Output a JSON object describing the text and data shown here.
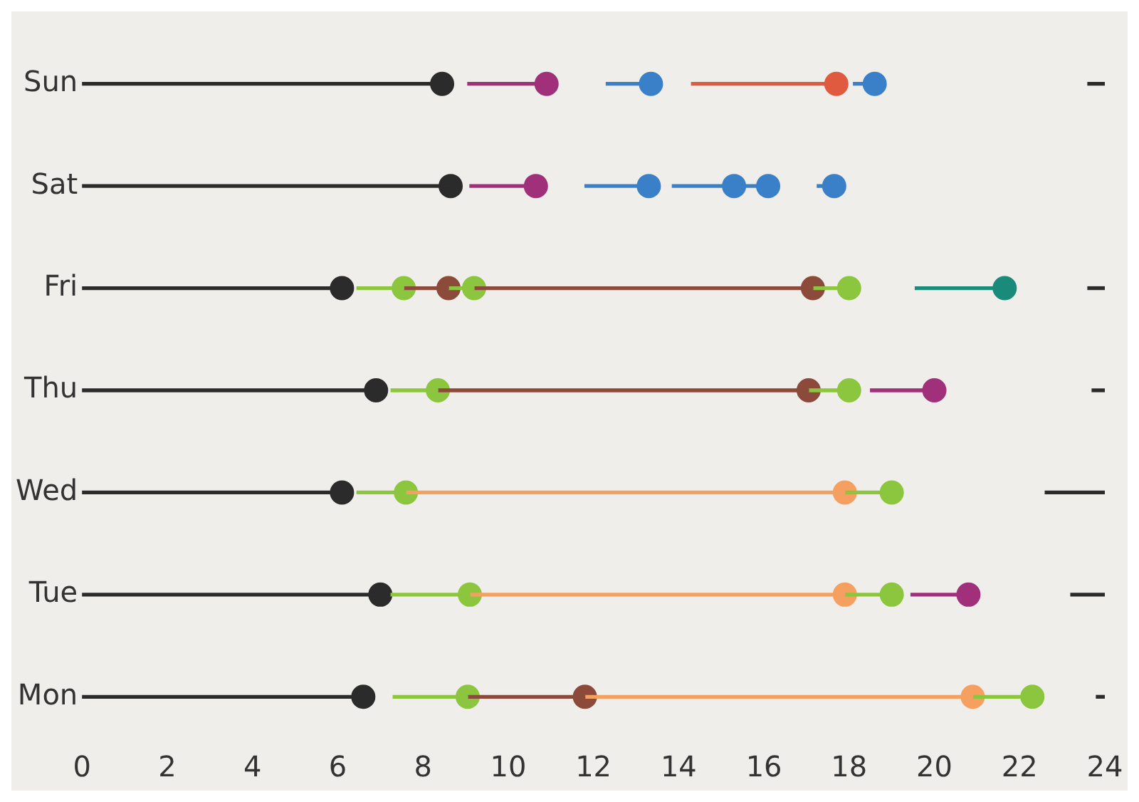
{
  "chart_data": {
    "type": "bar",
    "orientation": "horizontal",
    "categories": [
      "Sun",
      "Sat",
      "Fri",
      "Thu",
      "Wed",
      "Tue",
      "Mon"
    ],
    "xlim": [
      0,
      24
    ],
    "xticks": [
      0,
      2,
      4,
      6,
      8,
      10,
      12,
      14,
      16,
      18,
      20,
      22,
      24
    ],
    "grid": false,
    "legend": false,
    "series": [
      {
        "colors": [
          "#2b2b2b",
          null,
          "#2b2b2b",
          "#2b2b2b",
          "#2b2b2b",
          "#2b2b2b",
          "#2b2b2b"
        ],
        "base": [
          23.6,
          null,
          23.6,
          23.7,
          22.6,
          23.2,
          23.8
        ],
        "values": [
          0.4,
          null,
          0.4,
          0.3,
          1.4,
          0.8,
          0.2
        ]
      },
      {
        "colors": [
          "#2b2b2b",
          "#2b2b2b",
          "#2b2b2b",
          "#2b2b2b",
          "#2b2b2b",
          "#2b2b2b",
          "#2b2b2b"
        ],
        "base": [
          0,
          0,
          0,
          0,
          0,
          0,
          0
        ],
        "values": [
          8.45,
          8.65,
          6.1,
          6.9,
          6.1,
          7.0,
          6.6
        ]
      },
      {
        "colors": [
          "#a0307a",
          "#a0307a",
          "#8cc63f",
          "#8cc63f",
          "#8cc63f",
          "#8cc63f",
          "#8cc63f"
        ],
        "base": [
          9.05,
          9.1,
          6.45,
          7.25,
          6.45,
          7.25,
          7.3
        ],
        "values": [
          1.85,
          1.55,
          1.1,
          1.1,
          1.15,
          1.85,
          1.75
        ]
      },
      {
        "colors": [
          "#3a80c8",
          "#3a80c8",
          "#8b4a3a",
          "#8b4a3a",
          "#f5a060",
          "#f5a060",
          "#8b4a3a"
        ],
        "base": [
          12.3,
          11.8,
          7.55,
          8.35,
          7.6,
          9.1,
          9.05
        ],
        "values": [
          1.05,
          1.5,
          1.05,
          8.7,
          10.3,
          8.8,
          2.75
        ]
      },
      {
        "colors": [
          "#e05a40",
          "#3a80c8",
          "#8cc63f",
          "#8cc63f",
          "#8cc63f",
          "#8cc63f",
          "#f5a060"
        ],
        "base": [
          14.3,
          13.85,
          8.6,
          17.05,
          17.9,
          17.9,
          11.8
        ],
        "values": [
          3.4,
          1.45,
          0.6,
          0.95,
          1.1,
          1.1,
          9.1
        ]
      },
      {
        "colors": [
          "#3a80c8",
          "#3a80c8",
          "#8b4a3a",
          "#a0307a",
          null,
          "#a0307a",
          "#8cc63f"
        ],
        "base": [
          18.1,
          15.3,
          9.2,
          18.5,
          null,
          19.45,
          20.9
        ],
        "values": [
          0.5,
          0.8,
          7.95,
          1.5,
          null,
          1.35,
          1.4
        ]
      },
      {
        "colors": [
          null,
          "#3a80c8",
          "#8cc63f",
          null,
          null,
          null,
          null
        ],
        "base": [
          null,
          17.25,
          17.15,
          null,
          null,
          null,
          null
        ],
        "values": [
          null,
          0.4,
          0.85,
          null,
          null,
          null,
          null
        ]
      },
      {
        "colors": [
          null,
          null,
          "#1a8a7a",
          null,
          null,
          null,
          null
        ],
        "base": [
          null,
          null,
          19.55,
          null,
          null,
          null,
          null
        ],
        "values": [
          null,
          null,
          2.1,
          null,
          null,
          null,
          null
        ]
      },
      {
        "type": "scatter",
        "marker": "circle",
        "color": "#2b2b2b",
        "x": [
          "Sun",
          "Sat",
          "Fri",
          "Thu",
          "Wed",
          "Tue",
          "Mon"
        ],
        "values": [
          8.45,
          8.65,
          6.1,
          6.9,
          6.1,
          7.0,
          6.6
        ]
      },
      {
        "type": "scatter",
        "marker": "circle",
        "color": "#a0307a",
        "x": [
          "Sun",
          "Sat",
          "Thu",
          "Tue"
        ],
        "values": [
          10.9,
          10.65,
          20.0,
          20.8
        ]
      },
      {
        "type": "scatter",
        "marker": "circle",
        "color": "#8cc63f",
        "x": [
          "Fri",
          "Fri",
          "Fri",
          "Thu",
          "Thu",
          "Wed",
          "Wed",
          "Tue",
          "Tue",
          "Mon",
          "Mon"
        ],
        "values": [
          7.55,
          9.2,
          18.0,
          8.35,
          18.0,
          7.6,
          19.0,
          9.1,
          19.0,
          9.05,
          22.3
        ]
      },
      {
        "type": "scatter",
        "marker": "circle",
        "color": "#3a80c8",
        "x": [
          "Sun",
          "Sun",
          "Sat",
          "Sat",
          "Sat",
          "Sat"
        ],
        "values": [
          13.35,
          18.6,
          13.3,
          15.3,
          16.1,
          17.65
        ]
      },
      {
        "type": "scatter",
        "marker": "circle",
        "color": "#8b4a3a",
        "x": [
          "Fri",
          "Fri",
          "Thu",
          "Mon"
        ],
        "values": [
          8.6,
          17.15,
          17.05,
          11.8
        ]
      },
      {
        "type": "scatter",
        "marker": "circle",
        "color": "#f5a060",
        "x": [
          "Wed",
          "Tue",
          "Mon"
        ],
        "values": [
          17.9,
          17.9,
          20.9
        ]
      },
      {
        "type": "scatter",
        "marker": "circle",
        "color": "#e05a40",
        "x": [
          "Sun"
        ],
        "values": [
          17.7
        ]
      },
      {
        "type": "scatter",
        "marker": "circle",
        "color": "#1a8a7a",
        "x": [
          "Fri"
        ],
        "values": [
          21.65
        ]
      }
    ]
  }
}
